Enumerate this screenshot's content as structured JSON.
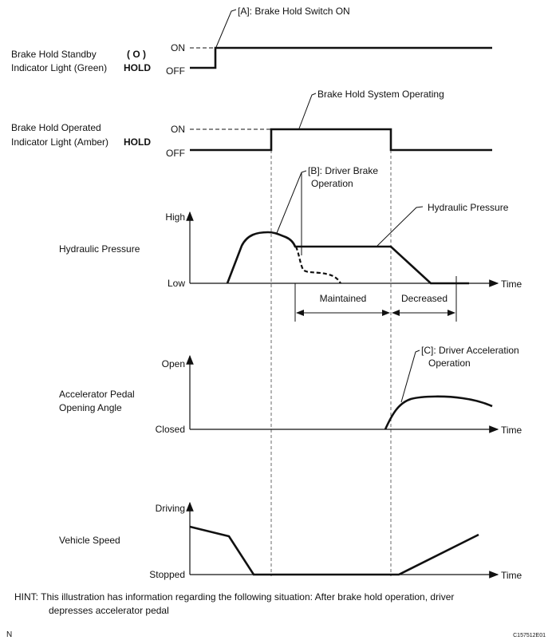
{
  "standby": {
    "label1": "Brake Hold Standby",
    "label2": "Indicator Light (Green)",
    "icon_top": "( O )",
    "icon_bottom": "HOLD",
    "on": "ON",
    "off": "OFF",
    "callout": "[A]: Brake Hold Switch ON"
  },
  "operated": {
    "label1": "Brake Hold Operated",
    "label2": "Indicator Light (Amber)",
    "icon_bottom": "HOLD",
    "on": "ON",
    "off": "OFF",
    "callout": "Brake Hold System Operating"
  },
  "hydraulic": {
    "label": "Hydraulic Pressure",
    "high": "High",
    "low": "Low",
    "time": "Time",
    "callout_b1": "[B]: Driver Brake",
    "callout_b2": "Operation",
    "callout_line": "Hydraulic Pressure",
    "maintained": "Maintained",
    "decreased": "Decreased"
  },
  "accelerator": {
    "label1": "Accelerator Pedal",
    "label2": "Opening Angle",
    "open": "Open",
    "closed": "Closed",
    "time": "Time",
    "callout1": "[C]: Driver Acceleration",
    "callout2": "Operation"
  },
  "speed": {
    "label": "Vehicle Speed",
    "driving": "Driving",
    "stopped": "Stopped",
    "time": "Time"
  },
  "hint": {
    "line1": "HINT:  This illustration has information regarding the following situation: After brake hold operation, driver",
    "line2": "depresses accelerator pedal"
  },
  "footer": {
    "left": "N",
    "code": "C157512E01"
  }
}
